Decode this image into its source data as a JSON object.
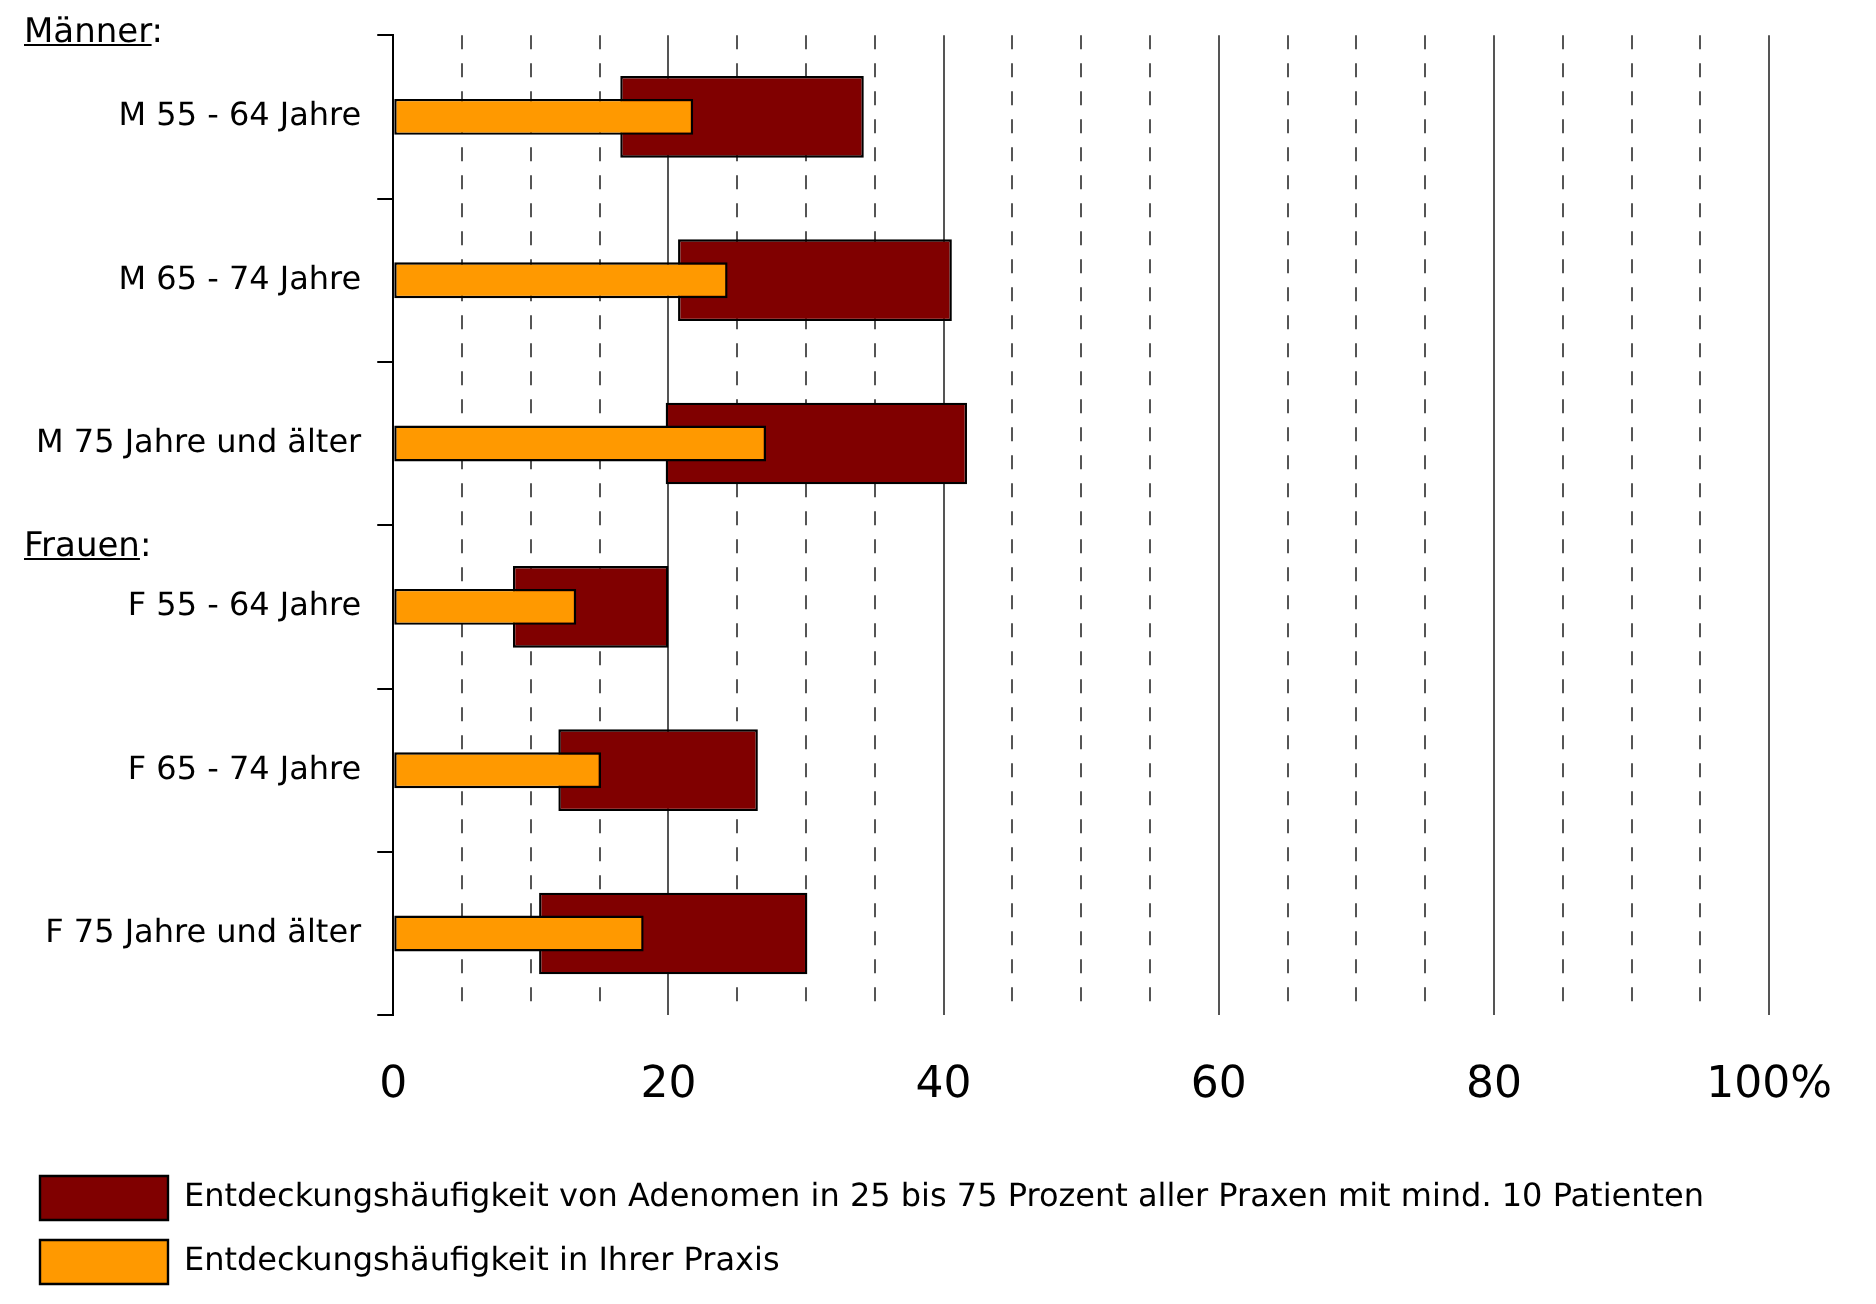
{
  "chart_data": {
    "type": "bar",
    "orientation": "horizontal",
    "categories": [
      "M 55 - 64 Jahre",
      "M 65 - 74 Jahre",
      "M 75 Jahre und älter",
      "F 55 - 64 Jahre",
      "F 65 - 74 Jahre",
      "F 75 Jahre und älter"
    ],
    "series": [
      {
        "name": "Entdeckungshäufigkeit von Adenomen in 25 bis 75 Prozent aller Praxen mit mind. 10 Patienten",
        "color": "#800000",
        "base": [
          16.5,
          20.7,
          19.8,
          8.7,
          12.0,
          10.6
        ],
        "values": [
          17.7,
          19.9,
          21.9,
          11.3,
          14.5,
          19.5
        ]
      },
      {
        "name": "Entdeckungshäufigkeit in Ihrer Praxis",
        "color": "#ff9900",
        "values": [
          21.8,
          24.3,
          27.1,
          13.3,
          15.1,
          18.2
        ]
      }
    ],
    "xlim": [
      0,
      100
    ],
    "xticks": [
      0,
      {
        "value": 5,
        "label": null
      },
      {
        "value": 10,
        "label": null
      },
      {
        "value": 15,
        "label": null
      },
      20,
      {
        "value": 25,
        "label": null
      },
      {
        "value": 30,
        "label": null
      },
      {
        "value": 35,
        "label": null
      },
      40,
      {
        "value": 45,
        "label": null
      },
      {
        "value": 50,
        "label": null
      },
      {
        "value": 55,
        "label": null
      },
      60,
      {
        "value": 65,
        "label": null
      },
      {
        "value": 70,
        "label": null
      },
      {
        "value": 75,
        "label": null
      },
      80,
      {
        "value": 85,
        "label": null
      },
      {
        "value": 90,
        "label": null
      },
      {
        "value": 95,
        "label": null
      },
      {
        "value": 100,
        "label": "100%"
      }
    ],
    "grid": "x",
    "legend": "bottom",
    "annotations": [
      "Männer:",
      "Frauen:"
    ]
  }
}
